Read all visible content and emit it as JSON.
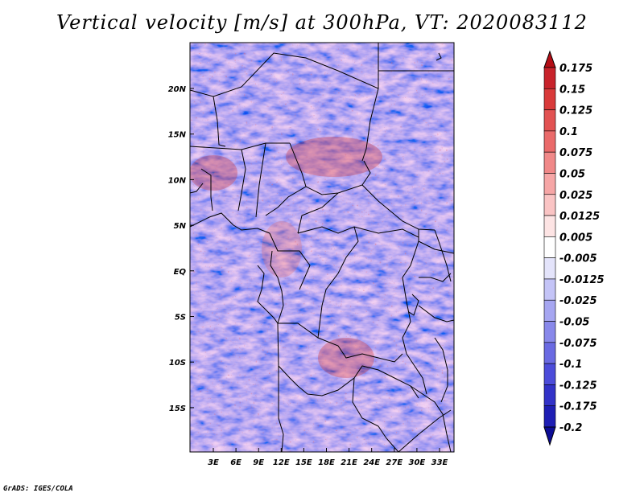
{
  "title": "Vertical velocity [m/s] at 300hPa, VT: 2020083112",
  "credit": "GrADS: IGES/COLA",
  "map": {
    "lat_labels": [
      "20N",
      "15N",
      "10N",
      "5N",
      "EQ",
      "5S",
      "10S",
      "15S"
    ],
    "lon_labels": [
      "3E",
      "6E",
      "9E",
      "12E",
      "15E",
      "18E",
      "21E",
      "24E",
      "27E",
      "30E",
      "33E"
    ]
  },
  "colorbar": {
    "labels": [
      "0.175",
      "0.15",
      "0.125",
      "0.1",
      "0.075",
      "0.05",
      "0.025",
      "0.0125",
      "0.005",
      "-0.005",
      "-0.0125",
      "-0.025",
      "-0.05",
      "-0.075",
      "-0.1",
      "-0.125",
      "-0.175",
      "-0.2"
    ],
    "colors": [
      "#b40e16",
      "#c8232b",
      "#d93a3a",
      "#e25252",
      "#ea6a6a",
      "#f08888",
      "#f6a6a6",
      "#fac4c4",
      "#fde4e4",
      "#ffffff",
      "#e4e4fb",
      "#c4c4f7",
      "#a6a6f1",
      "#8888ea",
      "#6a6ae2",
      "#4c4cda",
      "#3232c8",
      "#1e1eb4",
      "#0c0c96"
    ]
  }
}
